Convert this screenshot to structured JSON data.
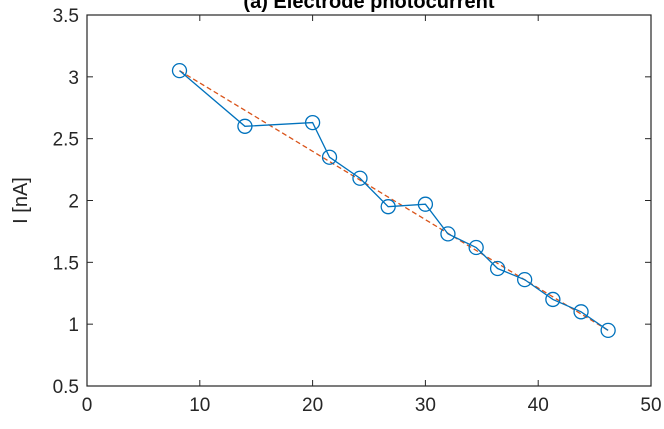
{
  "chart_data": {
    "type": "line",
    "title": "(a) Electrode photocurrent",
    "xlabel": "",
    "ylabel": "I [nA]",
    "xlim": [
      0,
      50
    ],
    "ylim": [
      0.5,
      3.5
    ],
    "xticks": [
      0,
      10,
      20,
      30,
      40,
      50
    ],
    "yticks": [
      0.5,
      1,
      1.5,
      2,
      2.5,
      3,
      3.5
    ],
    "xtick_labels": [
      "0",
      "10",
      "20",
      "30",
      "40",
      "50"
    ],
    "ytick_labels": [
      "0.5",
      "1",
      "1.5",
      "2",
      "2.5",
      "3",
      "3.5"
    ],
    "grid": false,
    "series": [
      {
        "style": "solid line with circle markers",
        "color": "#0072BD",
        "x": [
          8.2,
          14.0,
          20.0,
          21.5,
          24.2,
          26.7,
          30.0,
          32.0,
          34.5,
          36.4,
          38.8,
          41.3,
          43.8,
          46.2
        ],
        "y": [
          3.05,
          2.6,
          2.63,
          2.35,
          2.18,
          1.95,
          1.97,
          1.73,
          1.62,
          1.45,
          1.36,
          1.2,
          1.1,
          0.95
        ]
      },
      {
        "style": "dashed fit line",
        "color": "#D95319",
        "x": [
          8.2,
          46.2
        ],
        "y": [
          3.05,
          0.95
        ]
      }
    ]
  }
}
